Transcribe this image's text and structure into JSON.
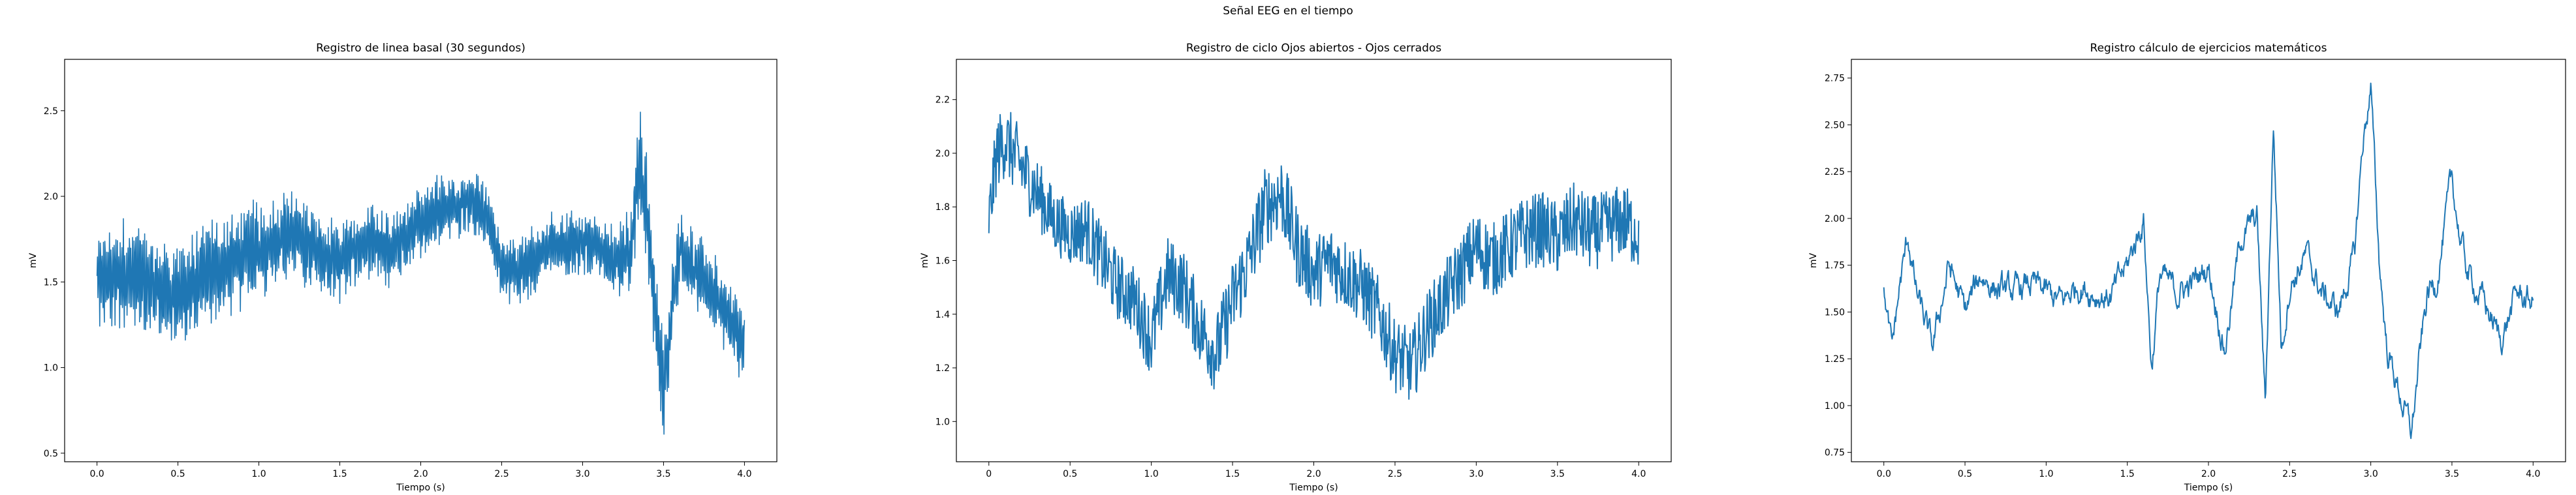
{
  "suptitle": "Señal EEG en el tiempo",
  "line_color": "#1f77b4",
  "chart_data": [
    {
      "type": "line",
      "title": "Registro de linea basal (30 segundos)",
      "xlabel": "Tiempo (s)",
      "ylabel": "mV",
      "xlim": [
        -0.2,
        4.2
      ],
      "ylim": [
        0.45,
        2.8
      ],
      "xticks": [
        0.0,
        0.5,
        1.0,
        1.5,
        2.0,
        2.5,
        3.0,
        3.5,
        4.0
      ],
      "xtick_labels": [
        "0.0",
        "0.5",
        "1.0",
        "1.5",
        "2.0",
        "2.5",
        "3.0",
        "3.5",
        "4.0"
      ],
      "yticks": [
        0.5,
        1.0,
        1.5,
        2.0,
        2.5
      ],
      "ytick_labels": [
        "0.5",
        "1.0",
        "1.5",
        "2.0",
        "2.5"
      ],
      "grid": false,
      "x": [
        0.0,
        0.1,
        0.2,
        0.3,
        0.4,
        0.5,
        0.6,
        0.7,
        0.8,
        0.9,
        1.0,
        1.1,
        1.2,
        1.3,
        1.4,
        1.5,
        1.6,
        1.7,
        1.8,
        1.9,
        2.0,
        2.1,
        2.2,
        2.3,
        2.4,
        2.5,
        2.6,
        2.7,
        2.8,
        2.9,
        3.0,
        3.1,
        3.2,
        3.3,
        3.35,
        3.4,
        3.45,
        3.5,
        3.55,
        3.6,
        3.7,
        3.8,
        3.9,
        4.0
      ],
      "y": [
        1.5,
        1.52,
        1.55,
        1.5,
        1.45,
        1.42,
        1.48,
        1.55,
        1.6,
        1.65,
        1.68,
        1.75,
        1.78,
        1.72,
        1.66,
        1.62,
        1.7,
        1.72,
        1.68,
        1.75,
        1.85,
        1.92,
        1.95,
        1.98,
        1.9,
        1.6,
        1.55,
        1.62,
        1.72,
        1.7,
        1.75,
        1.7,
        1.6,
        1.7,
        2.2,
        1.9,
        1.3,
        0.85,
        1.35,
        1.7,
        1.55,
        1.45,
        1.3,
        1.1
      ],
      "band": [
        0.25,
        0.27,
        0.28,
        0.27,
        0.26,
        0.25,
        0.26,
        0.27,
        0.27,
        0.26,
        0.25,
        0.24,
        0.23,
        0.22,
        0.2,
        0.2,
        0.2,
        0.19,
        0.19,
        0.18,
        0.18,
        0.17,
        0.17,
        0.16,
        0.16,
        0.16,
        0.17,
        0.18,
        0.17,
        0.17,
        0.17,
        0.17,
        0.18,
        0.2,
        0.3,
        0.3,
        0.3,
        0.25,
        0.22,
        0.22,
        0.2,
        0.2,
        0.2,
        0.2
      ]
    },
    {
      "type": "line",
      "title": "Registro de ciclo Ojos abiertos - Ojos cerrados",
      "xlabel": "Tiempo (s)",
      "ylabel": "mV",
      "xlim": [
        -0.2,
        4.2
      ],
      "ylim": [
        0.85,
        2.35
      ],
      "xticks": [
        0.0,
        0.5,
        1.0,
        1.5,
        2.0,
        2.5,
        3.0,
        3.5,
        4.0
      ],
      "xtick_labels": [
        "0",
        "0.5",
        "1.0",
        "1.5",
        "2.0",
        "2.5",
        "3.0",
        "3.5",
        "4.0"
      ],
      "yticks": [
        1.0,
        1.2,
        1.4,
        1.6,
        1.8,
        2.0,
        2.2
      ],
      "ytick_labels": [
        "1.0",
        "1.2",
        "1.4",
        "1.6",
        "1.8",
        "2.0",
        "2.2"
      ],
      "grid": false,
      "x": [
        0.0,
        0.05,
        0.1,
        0.2,
        0.3,
        0.4,
        0.5,
        0.6,
        0.7,
        0.8,
        0.9,
        1.0,
        1.1,
        1.2,
        1.3,
        1.4,
        1.5,
        1.6,
        1.7,
        1.8,
        1.9,
        2.0,
        2.1,
        2.2,
        2.3,
        2.4,
        2.5,
        2.6,
        2.7,
        2.8,
        2.9,
        3.0,
        3.1,
        3.2,
        3.3,
        3.4,
        3.5,
        3.6,
        3.7,
        3.8,
        3.9,
        4.0
      ],
      "y": [
        1.75,
        2.0,
        2.05,
        1.95,
        1.85,
        1.75,
        1.7,
        1.72,
        1.6,
        1.5,
        1.45,
        1.3,
        1.55,
        1.5,
        1.35,
        1.25,
        1.45,
        1.6,
        1.8,
        1.85,
        1.65,
        1.55,
        1.6,
        1.55,
        1.5,
        1.4,
        1.25,
        1.2,
        1.35,
        1.45,
        1.55,
        1.65,
        1.6,
        1.65,
        1.7,
        1.72,
        1.68,
        1.75,
        1.7,
        1.72,
        1.75,
        1.7
      ],
      "band": [
        0.12,
        0.14,
        0.14,
        0.14,
        0.13,
        0.12,
        0.12,
        0.13,
        0.13,
        0.13,
        0.13,
        0.14,
        0.14,
        0.14,
        0.14,
        0.15,
        0.15,
        0.15,
        0.15,
        0.15,
        0.15,
        0.14,
        0.14,
        0.14,
        0.14,
        0.14,
        0.14,
        0.14,
        0.14,
        0.14,
        0.14,
        0.14,
        0.14,
        0.14,
        0.14,
        0.14,
        0.14,
        0.14,
        0.14,
        0.14,
        0.14,
        0.14
      ]
    },
    {
      "type": "line",
      "title": "Registro cálculo de ejercicios matemáticos",
      "xlabel": "Tiempo (s)",
      "ylabel": "mV",
      "xlim": [
        -0.2,
        4.2
      ],
      "ylim": [
        0.7,
        2.85
      ],
      "xticks": [
        0.0,
        0.5,
        1.0,
        1.5,
        2.0,
        2.5,
        3.0,
        3.5,
        4.0
      ],
      "xtick_labels": [
        "0.0",
        "0.5",
        "1.0",
        "1.5",
        "2.0",
        "2.5",
        "3.0",
        "3.5",
        "4.0"
      ],
      "yticks": [
        0.75,
        1.0,
        1.25,
        1.5,
        1.75,
        2.0,
        2.25,
        2.5,
        2.75
      ],
      "ytick_labels": [
        "0.75",
        "1.00",
        "1.25",
        "1.50",
        "1.75",
        "2.00",
        "2.25",
        "2.50",
        "2.75"
      ],
      "grid": false,
      "x": [
        0.0,
        0.05,
        0.1,
        0.15,
        0.2,
        0.3,
        0.4,
        0.5,
        0.6,
        0.7,
        0.8,
        0.9,
        1.0,
        1.1,
        1.2,
        1.3,
        1.4,
        1.5,
        1.6,
        1.65,
        1.7,
        1.8,
        1.9,
        2.0,
        2.1,
        2.2,
        2.3,
        2.35,
        2.4,
        2.45,
        2.5,
        2.6,
        2.7,
        2.8,
        2.9,
        2.95,
        3.0,
        3.05,
        3.1,
        3.2,
        3.25,
        3.3,
        3.35,
        3.4,
        3.5,
        3.55,
        3.6,
        3.7,
        3.8,
        3.9,
        4.0
      ],
      "y": [
        1.6,
        1.3,
        1.65,
        1.9,
        1.6,
        1.3,
        1.75,
        1.5,
        1.7,
        1.62,
        1.6,
        1.65,
        1.6,
        1.55,
        1.65,
        1.6,
        1.58,
        1.75,
        2.0,
        1.2,
        1.7,
        1.6,
        1.65,
        1.75,
        1.3,
        1.9,
        2.0,
        1.0,
        2.5,
        1.3,
        1.65,
        1.8,
        1.6,
        1.5,
        1.8,
        2.4,
        2.7,
        1.8,
        1.3,
        1.0,
        0.85,
        1.25,
        1.6,
        1.65,
        2.2,
        1.9,
        1.7,
        1.55,
        1.35,
        1.6,
        1.55
      ],
      "band": [
        0.06,
        0.07,
        0.08,
        0.08,
        0.08,
        0.08,
        0.08,
        0.08,
        0.08,
        0.08,
        0.08,
        0.08,
        0.08,
        0.08,
        0.08,
        0.08,
        0.08,
        0.08,
        0.08,
        0.08,
        0.08,
        0.08,
        0.08,
        0.08,
        0.08,
        0.08,
        0.08,
        0.08,
        0.08,
        0.08,
        0.08,
        0.08,
        0.08,
        0.08,
        0.08,
        0.08,
        0.08,
        0.08,
        0.08,
        0.08,
        0.08,
        0.08,
        0.08,
        0.08,
        0.08,
        0.08,
        0.08,
        0.08,
        0.08,
        0.08,
        0.08
      ]
    }
  ]
}
